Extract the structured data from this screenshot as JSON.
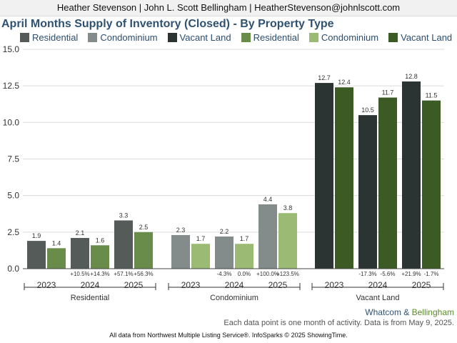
{
  "header": "Heather Stevenson | John L. Scott Bellingham | HeatherStevenson@johnlscott.com",
  "title": "April Months Supply of Inventory (Closed) - By Property Type",
  "attribution": {
    "part1": "Whatcom",
    "amp": " & ",
    "part2": "Bellingham"
  },
  "footnote": "Each data point is one month of activity. Data is from May 9, 2025.",
  "source": "All data from Northwest Multiple Listing Service®. InfoSparks © 2025 ShowingTime.",
  "colors": {
    "residential_dark": "#545b58",
    "residential_light": "#6a8c4a",
    "condo_dark": "#838c8b",
    "condo_light": "#9bbb74",
    "vacant_dark": "#2b3432",
    "vacant_light": "#3b5a24"
  },
  "legend": [
    {
      "label": "Residential",
      "color": "#545b58"
    },
    {
      "label": "Condominium",
      "color": "#838c8b"
    },
    {
      "label": "Vacant Land",
      "color": "#2b3432"
    },
    {
      "label": "Residential",
      "color": "#6a8c4a"
    },
    {
      "label": "Condominium",
      "color": "#9bbb74"
    },
    {
      "label": "Vacant Land",
      "color": "#3b5a24"
    }
  ],
  "chart_data": {
    "type": "bar",
    "ylim": [
      0,
      15
    ],
    "yticks": [
      "0.0",
      "2.5",
      "5.0",
      "7.5",
      "10.0",
      "12.5",
      "15.0"
    ],
    "grid": true,
    "legend_position": "top",
    "groups": [
      {
        "name": "Residential",
        "years": [
          {
            "year": "2023",
            "values": [
              1.9,
              1.4
            ],
            "changes": [
              "",
              ""
            ]
          },
          {
            "year": "2024",
            "values": [
              2.1,
              1.6
            ],
            "changes": [
              "+10.5%",
              "+14.3%"
            ]
          },
          {
            "year": "2025",
            "values": [
              3.3,
              2.5
            ],
            "changes": [
              "+57.1%",
              "+56.3%"
            ]
          }
        ]
      },
      {
        "name": "Condominium",
        "years": [
          {
            "year": "2023",
            "values": [
              2.3,
              1.7
            ],
            "changes": [
              "",
              ""
            ]
          },
          {
            "year": "2024",
            "values": [
              2.2,
              1.7
            ],
            "changes": [
              "-4.3%",
              "0.0%"
            ]
          },
          {
            "year": "2025",
            "values": [
              4.4,
              3.8
            ],
            "changes": [
              "+100.0%",
              "+123.5%"
            ]
          }
        ]
      },
      {
        "name": "Vacant Land",
        "years": [
          {
            "year": "2023",
            "values": [
              12.7,
              12.4
            ],
            "changes": [
              "",
              ""
            ]
          },
          {
            "year": "2024",
            "values": [
              10.5,
              11.7
            ],
            "changes": [
              "-17.3%",
              "-5.6%"
            ]
          },
          {
            "year": "2025",
            "values": [
              12.8,
              11.5
            ],
            "changes": [
              "+21.9%",
              "-1.7%"
            ]
          }
        ]
      }
    ]
  }
}
